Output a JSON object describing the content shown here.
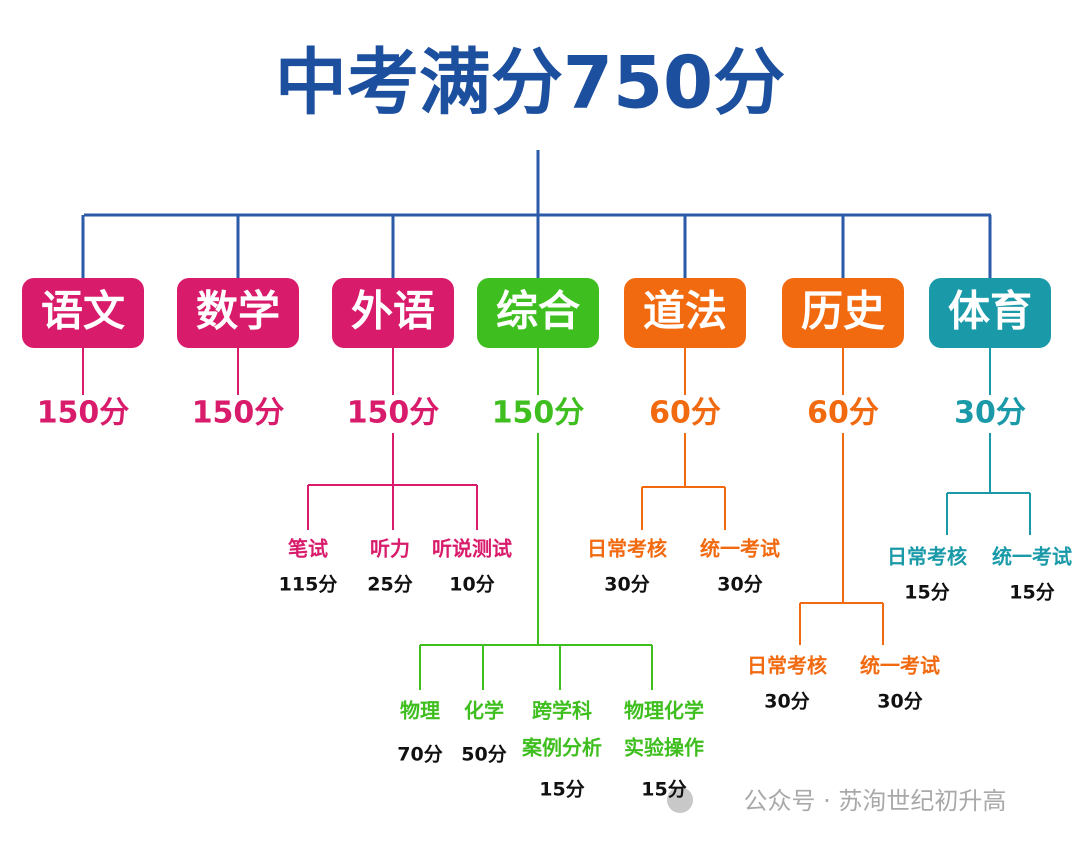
{
  "title": "中考满分750分",
  "subjects": [
    {
      "name": "语文",
      "score": "150分",
      "items": []
    },
    {
      "name": "数学",
      "score": "150分",
      "items": []
    },
    {
      "name": "外语",
      "score": "150分",
      "items": [
        {
          "label": [
            "笔试"
          ],
          "score": "115分"
        },
        {
          "label": [
            "听力"
          ],
          "score": "25分"
        },
        {
          "label": [
            "听说测试"
          ],
          "score": "10分"
        }
      ]
    },
    {
      "name": "综合",
      "score": "150分",
      "items": [
        {
          "label": [
            "物理"
          ],
          "score": "70分"
        },
        {
          "label": [
            "化学"
          ],
          "score": "50分"
        },
        {
          "label": [
            "跨学科",
            "案例分析"
          ],
          "score": "15分"
        },
        {
          "label": [
            "物理化学",
            "实验操作"
          ],
          "score": "15分"
        }
      ]
    },
    {
      "name": "道法",
      "score": "60分",
      "items": [
        {
          "label": [
            "日常考核"
          ],
          "score": "30分"
        },
        {
          "label": [
            "统一考试"
          ],
          "score": "30分"
        }
      ]
    },
    {
      "name": "历史",
      "score": "60分",
      "items": [
        {
          "label": [
            "日常考核"
          ],
          "score": "30分"
        },
        {
          "label": [
            "统一考试"
          ],
          "score": "30分"
        }
      ]
    },
    {
      "name": "体育",
      "score": "30分",
      "items": [
        {
          "label": [
            "日常考核"
          ],
          "score": "15分"
        },
        {
          "label": [
            "统一考试"
          ],
          "score": "15分"
        }
      ]
    }
  ],
  "watermark": "公众号 · 苏洵世纪初升高"
}
